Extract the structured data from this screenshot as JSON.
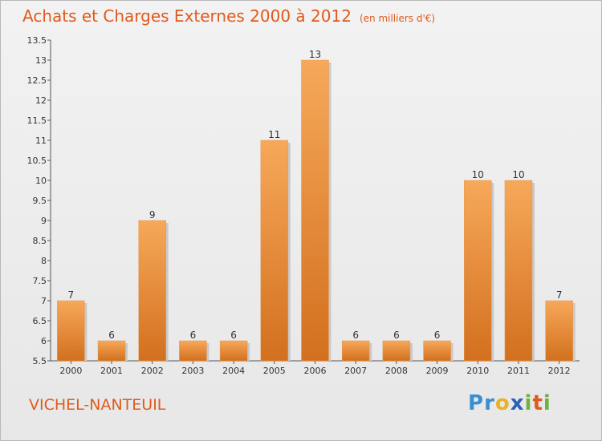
{
  "title": {
    "main": "Achats et Charges Externes 2000 à 2012",
    "unit": "(en milliers d'€)"
  },
  "place": "VICHEL-NANTEUIL",
  "brand": {
    "text": "Proxiti",
    "letters": [
      {
        "ch": "P",
        "color": "#3a8fd1"
      },
      {
        "ch": "r",
        "color": "#3a8fd1"
      },
      {
        "ch": "o",
        "color": "#e8b12a"
      },
      {
        "ch": "x",
        "color": "#2b62b8"
      },
      {
        "ch": "i",
        "color": "#6cb33e"
      },
      {
        "ch": "t",
        "color": "#e05a1e"
      },
      {
        "ch": "i",
        "color": "#6cb33e"
      }
    ]
  },
  "colors": {
    "bar_top": "#f7a85a",
    "bar_bottom": "#d2701e",
    "accent": "#e05a1e"
  },
  "chart_data": {
    "type": "bar",
    "categories": [
      "2000",
      "2001",
      "2002",
      "2003",
      "2004",
      "2005",
      "2006",
      "2007",
      "2008",
      "2009",
      "2010",
      "2011",
      "2012"
    ],
    "values": [
      7,
      6,
      9,
      6,
      6,
      11,
      13,
      6,
      6,
      6,
      10,
      10,
      7
    ],
    "ylim": [
      5.5,
      13.5
    ],
    "yticks": [
      "5.5",
      "6",
      "6.5",
      "7",
      "7.5",
      "8",
      "8.5",
      "9",
      "9.5",
      "10",
      "10.5",
      "11",
      "11.5",
      "12",
      "12.5",
      "13",
      "13.5"
    ],
    "grid": false
  }
}
